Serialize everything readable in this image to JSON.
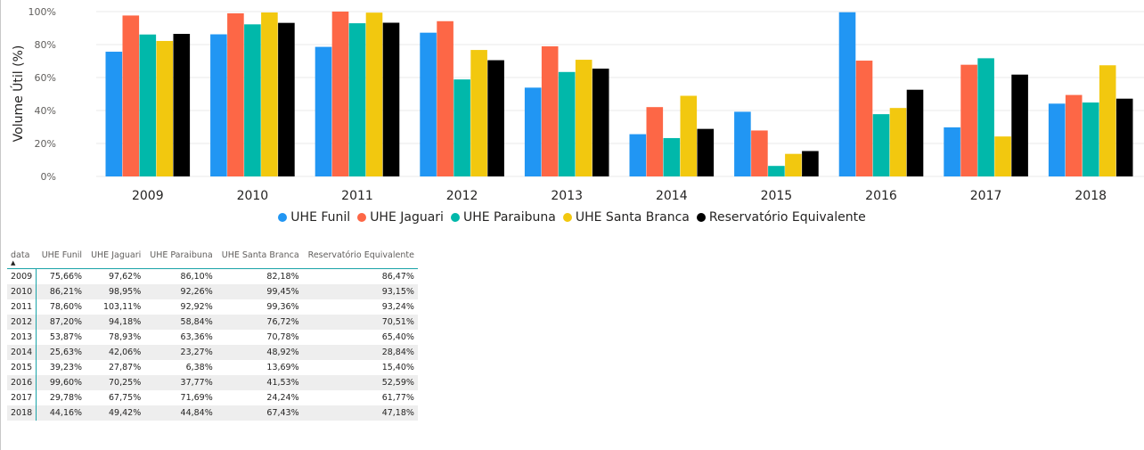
{
  "chart_data": {
    "type": "bar",
    "title": "",
    "xlabel": "",
    "ylabel": "Volume Útil (%)",
    "ylim": [
      0,
      100
    ],
    "yticks": [
      "0%",
      "20%",
      "40%",
      "60%",
      "80%",
      "100%"
    ],
    "grid": true,
    "legend_position": "bottom",
    "categories": [
      "2009",
      "2010",
      "2011",
      "2012",
      "2013",
      "2014",
      "2015",
      "2016",
      "2017",
      "2018"
    ],
    "series": [
      {
        "name": "UHE Funil",
        "color": "#2196f3",
        "values": [
          75.66,
          86.21,
          78.6,
          87.2,
          53.87,
          25.63,
          39.23,
          99.6,
          29.78,
          44.16
        ]
      },
      {
        "name": "UHE Jaguari",
        "color": "#fd6746",
        "values": [
          97.62,
          98.95,
          103.11,
          94.18,
          78.93,
          42.06,
          27.87,
          70.25,
          67.75,
          49.42
        ]
      },
      {
        "name": "UHE Paraibuna",
        "color": "#01b8aa",
        "values": [
          86.1,
          92.26,
          92.92,
          58.84,
          63.36,
          23.27,
          6.38,
          37.77,
          71.69,
          44.84
        ]
      },
      {
        "name": "UHE Santa Branca",
        "color": "#f2c80f",
        "values": [
          82.18,
          99.45,
          99.36,
          76.72,
          70.78,
          48.92,
          13.69,
          41.53,
          24.24,
          67.43
        ]
      },
      {
        "name": "Reservatório Equivalente",
        "color": "#000000",
        "values": [
          86.47,
          93.15,
          93.24,
          70.51,
          65.4,
          28.84,
          15.4,
          52.59,
          61.77,
          47.18
        ]
      }
    ]
  },
  "table": {
    "sort_indicator": "▲",
    "headers": [
      "data",
      "UHE Funil",
      "UHE Jaguari",
      "UHE Paraibuna",
      "UHE Santa Branca",
      "Reservatório Equivalente"
    ],
    "rows": [
      [
        "2009",
        "75,66%",
        "97,62%",
        "86,10%",
        "82,18%",
        "86,47%"
      ],
      [
        "2010",
        "86,21%",
        "98,95%",
        "92,26%",
        "99,45%",
        "93,15%"
      ],
      [
        "2011",
        "78,60%",
        "103,11%",
        "92,92%",
        "99,36%",
        "93,24%"
      ],
      [
        "2012",
        "87,20%",
        "94,18%",
        "58,84%",
        "76,72%",
        "70,51%"
      ],
      [
        "2013",
        "53,87%",
        "78,93%",
        "63,36%",
        "70,78%",
        "65,40%"
      ],
      [
        "2014",
        "25,63%",
        "42,06%",
        "23,27%",
        "48,92%",
        "28,84%"
      ],
      [
        "2015",
        "39,23%",
        "27,87%",
        "6,38%",
        "13,69%",
        "15,40%"
      ],
      [
        "2016",
        "99,60%",
        "70,25%",
        "37,77%",
        "41,53%",
        "52,59%"
      ],
      [
        "2017",
        "29,78%",
        "67,75%",
        "71,69%",
        "24,24%",
        "61,77%"
      ],
      [
        "2018",
        "44,16%",
        "49,42%",
        "44,84%",
        "67,43%",
        "47,18%"
      ]
    ]
  }
}
